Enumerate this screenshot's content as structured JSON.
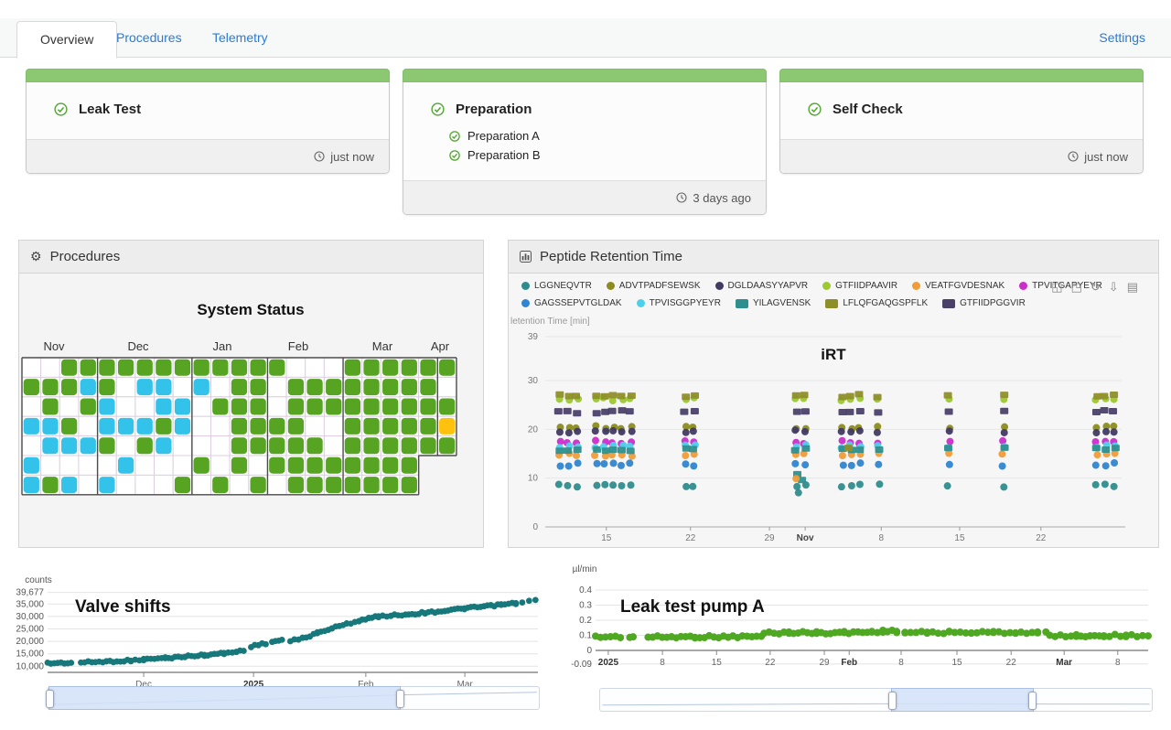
{
  "tabs": {
    "items": [
      {
        "label": "Overview",
        "active": true
      },
      {
        "label": "Procedures",
        "active": false
      },
      {
        "label": "Telemetry",
        "active": false
      }
    ],
    "settings_label": "Settings"
  },
  "cards": [
    {
      "title": "Leak Test",
      "timestamp": "just now",
      "items": []
    },
    {
      "title": "Preparation",
      "timestamp": "3 days ago",
      "items": [
        "Preparation A",
        "Preparation B"
      ]
    },
    {
      "title": "Self Check",
      "timestamp": "just now",
      "items": []
    }
  ],
  "panels": {
    "procedures": {
      "title": "Procedures"
    },
    "peptide": {
      "title": "Peptide Retention Time"
    }
  },
  "toolbar_icons": [
    {
      "name": "zoom-select-icon",
      "glyph": "◱"
    },
    {
      "name": "zoom-reset-icon",
      "glyph": "◳"
    },
    {
      "name": "restore-icon",
      "glyph": "↻"
    },
    {
      "name": "download-icon",
      "glyph": "⇩"
    },
    {
      "name": "data-view-icon",
      "glyph": "▤"
    }
  ],
  "colors": {
    "accent_blue": "#2b7bd4",
    "card_strip_green": "#8cc872",
    "check_green": "#4ea72e",
    "calendar_green": "#56a421",
    "calendar_cyan": "#33c3ea",
    "calendar_yellow": "#fec20e",
    "valve_teal": "#17787b",
    "pump_green": "#4fa821"
  },
  "chart_data": [
    {
      "type": "heatmap",
      "title": "System Status",
      "months": [
        {
          "label": "Nov",
          "x": 38
        },
        {
          "label": "Dec",
          "x": 130
        },
        {
          "label": "Jan",
          "x": 222
        },
        {
          "label": "Feb",
          "x": 305
        },
        {
          "label": "Mar",
          "x": 397
        },
        {
          "label": "Apr",
          "x": 460
        }
      ],
      "cell_colors": {
        "G": "#56a421",
        "C": "#33c3ea",
        "Y": "#fec20e",
        "W": "#ffffff"
      },
      "grid": [
        "WWGGGGGGGGGGGGWWWGGGGGG",
        "GGGCGWCCWCWGGWGGGGGGGGW",
        "WGWGCWWCCWGGGWGGGGGGGGG",
        "CCGWCCCGCWWGGGGWWGGGGGY",
        "WCCCGWGCWWWGGGGGWGGGGGG",
        "CWWWWCWWWGWGWGGGGGGGGNN",
        "CGCWCWWWGWGWGWGGGGGGGNN"
      ]
    },
    {
      "type": "scatter",
      "title": "iRT",
      "ylabel": "letention Time [min]",
      "ylim": [
        0,
        39
      ],
      "yticks": [
        0,
        10,
        20,
        30,
        39
      ],
      "xticks": [
        {
          "label": "15",
          "x": 0.106
        },
        {
          "label": "22",
          "x": 0.252
        },
        {
          "label": "29",
          "x": 0.389
        },
        {
          "label": "Nov",
          "x": 0.451,
          "bold": true
        },
        {
          "label": "8",
          "x": 0.583
        },
        {
          "label": "15",
          "x": 0.719
        },
        {
          "label": "22",
          "x": 0.86
        }
      ],
      "series": [
        {
          "name": "LGGNEQVTR",
          "color": "#2f8c8c",
          "marker": "circle",
          "rt": 8.5
        },
        {
          "name": "ADVTPADFSEWSK",
          "color": "#8c8c1f",
          "marker": "circle",
          "rt": 20.4
        },
        {
          "name": "DGLDAASYYAPVR",
          "color": "#413a63",
          "marker": "circle",
          "rt": 19.6
        },
        {
          "name": "GTFIIDPAAVIR",
          "color": "#9cc832",
          "marker": "circle",
          "rt": 26.2
        },
        {
          "name": "VEATFGVDESNAK",
          "color": "#f09c38",
          "marker": "circle",
          "rt": 14.8
        },
        {
          "name": "TPVITGAPYEYR",
          "color": "#cb2dcb",
          "marker": "circle",
          "rt": 17.4
        },
        {
          "name": "GAGSSEPVTGLDAK",
          "color": "#2f85d0",
          "marker": "circle",
          "rt": 12.8
        },
        {
          "name": "TPVISGGPYEYR",
          "color": "#4fd0ea",
          "marker": "circle",
          "rt": 16.5
        },
        {
          "name": "YILAGVENSK",
          "color": "#2f8f8f",
          "marker": "square",
          "rt": 15.9
        },
        {
          "name": "LFLQFGAQGSPFLK",
          "color": "#8f8f2a",
          "marker": "square",
          "rt": 26.9
        },
        {
          "name": "GTFIIDPGGVIR",
          "color": "#4a4169",
          "marker": "square",
          "rt": 23.6
        }
      ],
      "clusters": [
        {
          "x": 0.025,
          "cols": 3
        },
        {
          "x": 0.088,
          "cols": 5
        },
        {
          "x": 0.243,
          "cols": 2
        },
        {
          "x": 0.435,
          "cols": 2
        },
        {
          "x": 0.515,
          "cols": 3
        },
        {
          "x": 0.578,
          "cols": 1
        },
        {
          "x": 0.7,
          "cols": 1
        },
        {
          "x": 0.795,
          "cols": 1
        },
        {
          "x": 0.957,
          "cols": 3
        }
      ],
      "outliers": [
        {
          "cluster": 3,
          "series": 8,
          "rt": 10.8
        },
        {
          "cluster": 3,
          "series": 8,
          "rt": 9.6
        },
        {
          "cluster": 3,
          "series": 4,
          "rt": 9.9
        },
        {
          "cluster": 3,
          "series": 0,
          "rt": 7.0
        },
        {
          "cluster": 4,
          "series": 9,
          "rt": 16.2
        }
      ]
    },
    {
      "type": "line",
      "title": "Valve shifts",
      "ylabel": "counts",
      "yticks": [
        {
          "label": "39,677",
          "v": 39677
        },
        {
          "label": "35,000",
          "v": 35000
        },
        {
          "label": "30,000",
          "v": 30000
        },
        {
          "label": "25,000",
          "v": 25000
        },
        {
          "label": "20,000",
          "v": 20000
        },
        {
          "label": "15,000",
          "v": 15000
        },
        {
          "label": "10,000",
          "v": 10000
        }
      ],
      "xticks": [
        {
          "label": "Dec",
          "x": 0.196
        },
        {
          "label": "2025",
          "x": 0.42,
          "bold": true
        },
        {
          "label": "Feb",
          "x": 0.649
        },
        {
          "label": "Mar",
          "x": 0.851
        }
      ],
      "color": "#17787b",
      "segments": [
        [
          [
            0.0,
            11200
          ],
          [
            0.048,
            11400
          ]
        ],
        [
          [
            0.068,
            11500
          ],
          [
            0.12,
            11900
          ],
          [
            0.17,
            12300
          ],
          [
            0.196,
            12700
          ],
          [
            0.24,
            13300
          ],
          [
            0.28,
            13900
          ],
          [
            0.32,
            14500
          ],
          [
            0.36,
            15200
          ],
          [
            0.385,
            15800
          ],
          [
            0.4,
            16500
          ]
        ],
        [
          [
            0.415,
            18000
          ],
          [
            0.445,
            19200
          ]
        ],
        [
          [
            0.458,
            19800
          ],
          [
            0.478,
            20600
          ]
        ],
        [
          [
            0.495,
            20000
          ],
          [
            0.52,
            21300
          ],
          [
            0.55,
            23300
          ],
          [
            0.58,
            25300
          ],
          [
            0.61,
            27000
          ],
          [
            0.635,
            28300
          ],
          [
            0.655,
            29300
          ],
          [
            0.675,
            30000
          ],
          [
            0.7,
            30400
          ],
          [
            0.73,
            30800
          ],
          [
            0.77,
            31500
          ],
          [
            0.81,
            32300
          ],
          [
            0.85,
            33200
          ],
          [
            0.89,
            34000
          ],
          [
            0.925,
            34700
          ],
          [
            0.955,
            35300
          ],
          [
            0.968,
            35600
          ]
        ],
        [
          [
            0.982,
            36100
          ],
          [
            0.995,
            36400
          ]
        ]
      ],
      "slider": {
        "start": 0.0,
        "end": 0.715,
        "preview": [
          [
            0.004,
            0.8
          ],
          [
            0.3,
            0.64
          ],
          [
            0.5,
            0.52
          ],
          [
            0.72,
            0.36
          ],
          [
            0.996,
            0.24
          ]
        ]
      }
    },
    {
      "type": "line",
      "title": "Leak test pump A",
      "ylabel": "µl/min",
      "yticks": [
        {
          "label": "0.4",
          "v": 0.4
        },
        {
          "label": "0.3",
          "v": 0.3
        },
        {
          "label": "0.2",
          "v": 0.2
        },
        {
          "label": "0.1",
          "v": 0.1
        },
        {
          "label": "0",
          "v": 0.0
        },
        {
          "label": "-0.09",
          "v": -0.09
        }
      ],
      "xticks": [
        {
          "label": "2025",
          "x": 0.023,
          "bold": true
        },
        {
          "label": "8",
          "x": 0.121
        },
        {
          "label": "15",
          "x": 0.219
        },
        {
          "label": "22",
          "x": 0.316
        },
        {
          "label": "29",
          "x": 0.414
        },
        {
          "label": "Feb",
          "x": 0.459,
          "bold": true
        },
        {
          "label": "8",
          "x": 0.553
        },
        {
          "label": "15",
          "x": 0.654
        },
        {
          "label": "22",
          "x": 0.752
        },
        {
          "label": "Mar",
          "x": 0.848,
          "bold": true
        },
        {
          "label": "8",
          "x": 0.945
        }
      ],
      "color": "#4fa821",
      "segments": [
        [
          [
            0.0,
            0.09
          ],
          [
            0.045,
            0.09
          ]
        ],
        [
          [
            0.062,
            0.09
          ],
          [
            0.068,
            0.09
          ]
        ],
        [
          [
            0.095,
            0.088
          ],
          [
            0.18,
            0.09
          ],
          [
            0.3,
            0.092
          ]
        ],
        [
          [
            0.305,
            0.115
          ],
          [
            0.35,
            0.118
          ],
          [
            0.4,
            0.117
          ],
          [
            0.45,
            0.118
          ],
          [
            0.5,
            0.122
          ],
          [
            0.52,
            0.128
          ],
          [
            0.545,
            0.126
          ],
          [
            0.56,
            0.118
          ],
          [
            0.6,
            0.118
          ],
          [
            0.64,
            0.12
          ],
          [
            0.68,
            0.118
          ],
          [
            0.72,
            0.12
          ],
          [
            0.76,
            0.119
          ],
          [
            0.8,
            0.118
          ],
          [
            0.815,
            0.115
          ]
        ],
        [
          [
            0.822,
            0.098
          ],
          [
            0.87,
            0.097
          ],
          [
            0.92,
            0.099
          ],
          [
            0.96,
            0.098
          ],
          [
            1.0,
            0.1
          ]
        ]
      ],
      "slider": {
        "start": 0.528,
        "end": 0.782,
        "preview": [
          [
            0.004,
            0.74
          ],
          [
            0.5,
            0.68
          ],
          [
            0.996,
            0.7
          ]
        ]
      }
    }
  ]
}
